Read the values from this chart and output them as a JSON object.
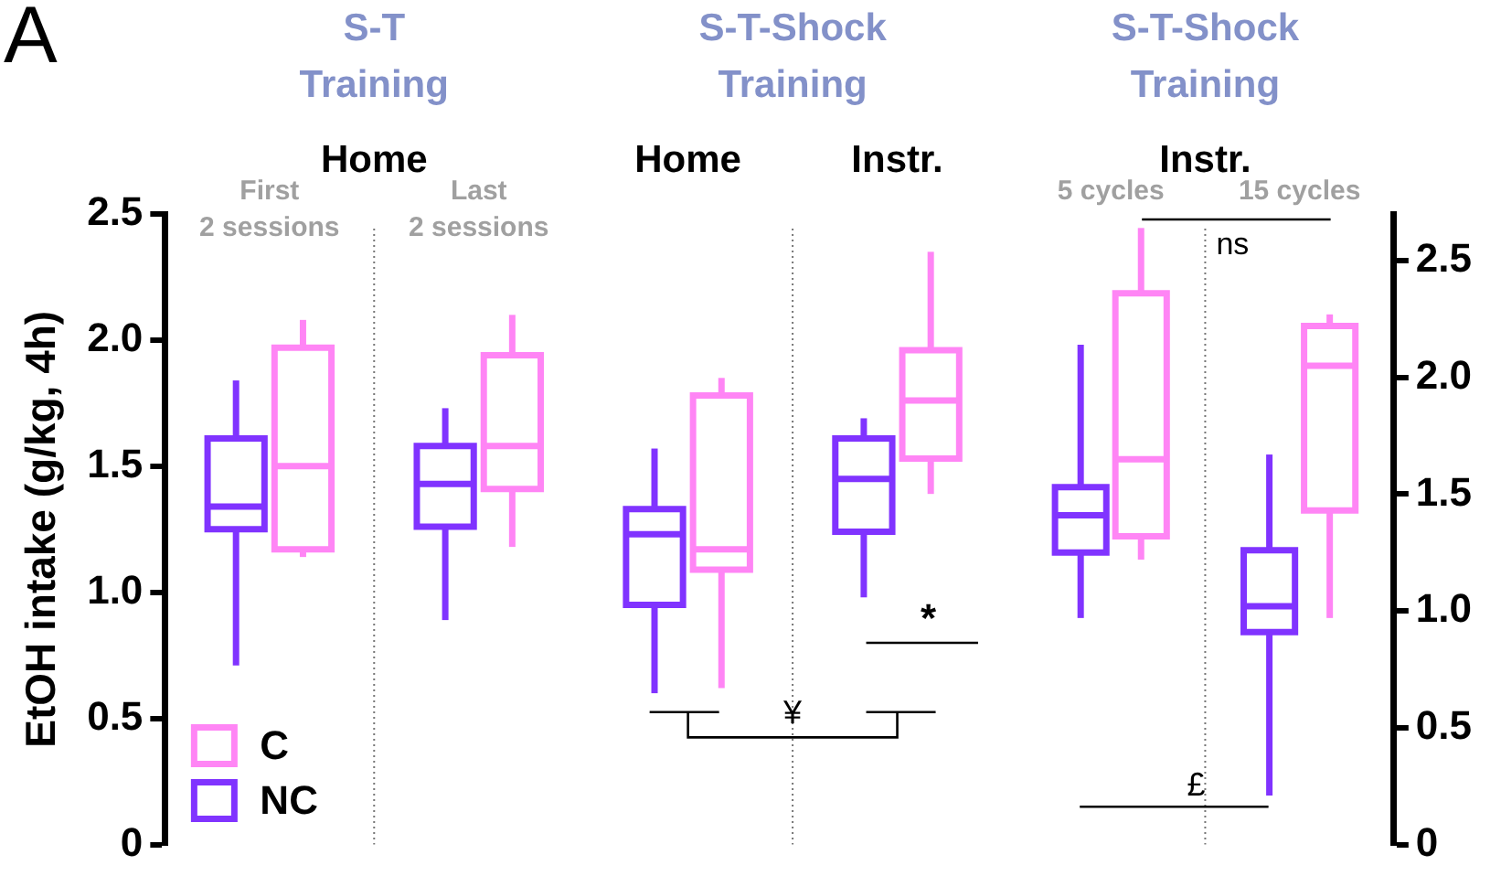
{
  "chart_data": [
    {
      "type": "box",
      "ylabel": "EtOH intake (g/kg, 4h)",
      "categories": [
        "First 2 sessions",
        "Last 2 sessions",
        "Home",
        "Instr."
      ],
      "series": [
        {
          "name": "NC",
          "color": "#8033ff",
          "boxes": [
            {
              "low": 0.71,
              "q1": 1.25,
              "median": 1.34,
              "q3": 1.61,
              "high": 1.84
            },
            {
              "low": 0.89,
              "q1": 1.26,
              "median": 1.43,
              "q3": 1.58,
              "high": 1.73
            },
            {
              "low": 0.6,
              "q1": 0.95,
              "median": 1.23,
              "q3": 1.33,
              "high": 1.57
            },
            {
              "low": 0.98,
              "q1": 1.24,
              "median": 1.45,
              "q3": 1.61,
              "high": 1.69
            }
          ]
        },
        {
          "name": "C",
          "color": "#ff85f5",
          "boxes": [
            {
              "low": 1.14,
              "q1": 1.17,
              "median": 1.5,
              "q3": 1.97,
              "high": 2.08
            },
            {
              "low": 1.18,
              "q1": 1.41,
              "median": 1.58,
              "q3": 1.94,
              "high": 2.1
            },
            {
              "low": 0.62,
              "q1": 1.09,
              "median": 1.17,
              "q3": 1.78,
              "high": 1.85
            },
            {
              "low": 1.39,
              "q1": 1.53,
              "median": 1.76,
              "q3": 1.96,
              "high": 2.35
            }
          ]
        }
      ],
      "ylim": [
        0,
        2.5
      ],
      "yticks": [
        0,
        0.5,
        {
          "value": 1,
          "label": "1.0"
        },
        1.5,
        {
          "value": 2,
          "label": "2.0"
        },
        2.5
      ],
      "legend": "bottom left",
      "grid": false,
      "annotations": [
        "A",
        "S-T Training",
        "Home",
        "S-T-Shock Training",
        "*",
        "¥"
      ]
    },
    {
      "type": "box",
      "categories": [
        "5 cycles",
        "15 cycles"
      ],
      "series": [
        {
          "color": "#8033ff",
          "axis": "y2",
          "boxes": [
            {
              "low": 0.97,
              "q1": 1.25,
              "median": 1.41,
              "q3": 1.53,
              "high": 2.14
            },
            {
              "low": 0.21,
              "q1": 0.91,
              "median": 1.02,
              "q3": 1.26,
              "high": 1.67
            }
          ]
        },
        {
          "color": "#ff85f5",
          "axis": "y2",
          "boxes": [
            {
              "low": 1.22,
              "q1": 1.32,
              "median": 1.65,
              "q3": 2.36,
              "high": 2.64
            },
            {
              "low": 0.97,
              "q1": 1.43,
              "median": 2.05,
              "q3": 2.22,
              "high": 2.27
            }
          ]
        }
      ],
      "y2lim": [
        0,
        2.7
      ],
      "y2ticks": [
        0,
        0.5,
        {
          "value": 1,
          "label": "1.0"
        },
        1.5,
        {
          "value": 2,
          "label": "2.0"
        },
        2.5
      ],
      "grid": false,
      "annotations": [
        "S-T-Shock Training",
        "Instr.",
        "ns",
        "£"
      ]
    }
  ]
}
